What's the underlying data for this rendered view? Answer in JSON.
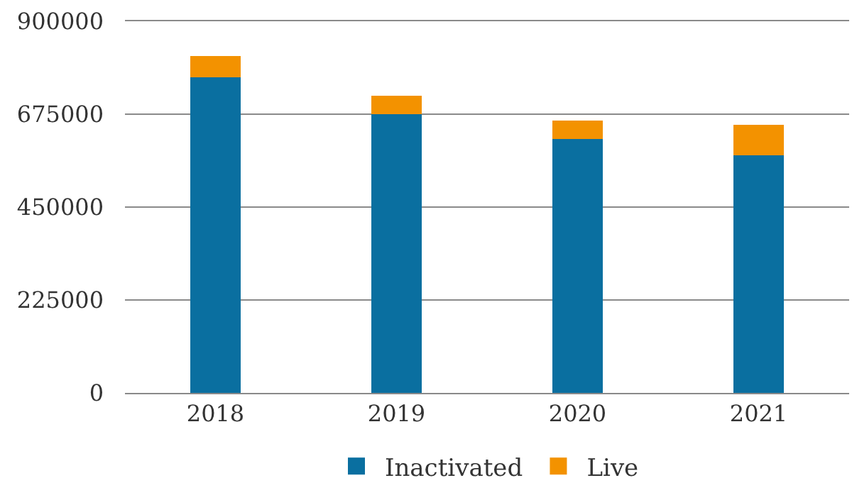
{
  "chart_data": {
    "type": "bar",
    "stacked": true,
    "categories": [
      "2018",
      "2019",
      "2020",
      "2021"
    ],
    "series": [
      {
        "name": "Inactivated",
        "color": "#0a6fa0",
        "values": [
          765000,
          675000,
          615000,
          575000
        ]
      },
      {
        "name": "Live",
        "color": "#f39200",
        "values": [
          50000,
          45000,
          45000,
          75000
        ]
      }
    ],
    "ylim": [
      0,
      900000
    ],
    "yticks": [
      0,
      225000,
      450000,
      675000,
      900000
    ],
    "grid": "y",
    "legend": "bottom"
  }
}
